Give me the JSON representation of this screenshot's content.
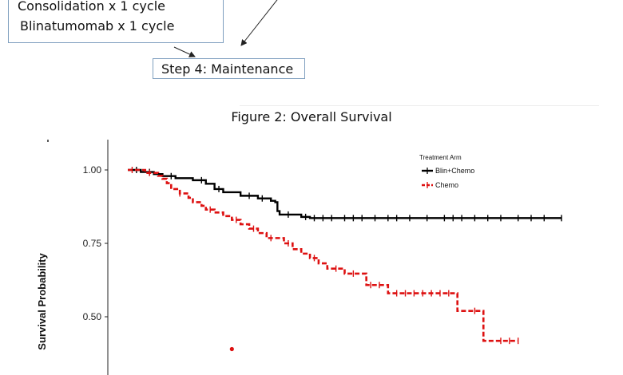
{
  "flow": {
    "box_lines": [
      "Consolidation x 1 cycle",
      "Blinatumomab x 1 cycle"
    ],
    "step4_label": "Step 4:  Maintenance"
  },
  "figure_title": "Figure 2:  Overall Survival",
  "chart_data": {
    "type": "line",
    "title": "Figure 2:  Overall Survival",
    "ylabel": "Survival Probability",
    "xlabel": "",
    "yticks": [
      0.5,
      0.75,
      1.0
    ],
    "ytick_labels": [
      "0.50",
      "0.75",
      "1.00"
    ],
    "ylim": [
      0.35,
      1.06
    ],
    "xlim": [
      0,
      1
    ],
    "grid": false,
    "legend": {
      "title": "Treatment Arm",
      "position": "top-right",
      "entries": [
        "Blin+Chemo",
        "Chemo"
      ]
    },
    "series": [
      {
        "name": "Blin+Chemo",
        "color": "#000000",
        "points": [
          [
            0.0,
            1.0
          ],
          [
            0.03,
            1.0
          ],
          [
            0.03,
            0.993
          ],
          [
            0.06,
            0.993
          ],
          [
            0.06,
            0.986
          ],
          [
            0.08,
            0.986
          ],
          [
            0.08,
            0.979
          ],
          [
            0.11,
            0.979
          ],
          [
            0.11,
            0.972
          ],
          [
            0.15,
            0.972
          ],
          [
            0.15,
            0.965
          ],
          [
            0.18,
            0.965
          ],
          [
            0.18,
            0.953
          ],
          [
            0.2,
            0.953
          ],
          [
            0.2,
            0.935
          ],
          [
            0.22,
            0.935
          ],
          [
            0.22,
            0.924
          ],
          [
            0.26,
            0.924
          ],
          [
            0.26,
            0.912
          ],
          [
            0.3,
            0.912
          ],
          [
            0.3,
            0.903
          ],
          [
            0.33,
            0.903
          ],
          [
            0.33,
            0.895
          ],
          [
            0.34,
            0.895
          ],
          [
            0.34,
            0.89
          ],
          [
            0.345,
            0.89
          ],
          [
            0.345,
            0.86
          ],
          [
            0.35,
            0.86
          ],
          [
            0.35,
            0.848
          ],
          [
            0.4,
            0.848
          ],
          [
            0.4,
            0.84
          ],
          [
            0.42,
            0.84
          ],
          [
            0.42,
            0.836
          ],
          [
            1.0,
            0.836
          ]
        ],
        "censor_x": [
          0.02,
          0.05,
          0.1,
          0.17,
          0.21,
          0.28,
          0.31,
          0.37,
          0.41,
          0.43,
          0.45,
          0.47,
          0.5,
          0.52,
          0.54,
          0.57,
          0.6,
          0.62,
          0.65,
          0.69,
          0.73,
          0.75,
          0.77,
          0.8,
          0.83,
          0.86,
          0.9,
          0.93,
          0.96,
          1.0
        ]
      },
      {
        "name": "Chemo",
        "color": "#dd1111",
        "points": [
          [
            0.0,
            1.0
          ],
          [
            0.04,
            1.0
          ],
          [
            0.04,
            0.99
          ],
          [
            0.07,
            0.99
          ],
          [
            0.07,
            0.98
          ],
          [
            0.08,
            0.98
          ],
          [
            0.08,
            0.97
          ],
          [
            0.09,
            0.97
          ],
          [
            0.09,
            0.955
          ],
          [
            0.1,
            0.955
          ],
          [
            0.1,
            0.935
          ],
          [
            0.12,
            0.935
          ],
          [
            0.12,
            0.92
          ],
          [
            0.14,
            0.92
          ],
          [
            0.14,
            0.905
          ],
          [
            0.15,
            0.905
          ],
          [
            0.15,
            0.89
          ],
          [
            0.17,
            0.89
          ],
          [
            0.17,
            0.878
          ],
          [
            0.18,
            0.878
          ],
          [
            0.18,
            0.865
          ],
          [
            0.2,
            0.865
          ],
          [
            0.2,
            0.855
          ],
          [
            0.22,
            0.855
          ],
          [
            0.22,
            0.843
          ],
          [
            0.24,
            0.843
          ],
          [
            0.24,
            0.83
          ],
          [
            0.26,
            0.83
          ],
          [
            0.26,
            0.815
          ],
          [
            0.28,
            0.815
          ],
          [
            0.28,
            0.8
          ],
          [
            0.3,
            0.8
          ],
          [
            0.3,
            0.785
          ],
          [
            0.32,
            0.785
          ],
          [
            0.32,
            0.768
          ],
          [
            0.36,
            0.768
          ],
          [
            0.36,
            0.75
          ],
          [
            0.38,
            0.75
          ],
          [
            0.38,
            0.73
          ],
          [
            0.4,
            0.73
          ],
          [
            0.4,
            0.715
          ],
          [
            0.42,
            0.715
          ],
          [
            0.42,
            0.7
          ],
          [
            0.44,
            0.7
          ],
          [
            0.44,
            0.682
          ],
          [
            0.46,
            0.682
          ],
          [
            0.46,
            0.664
          ],
          [
            0.5,
            0.664
          ],
          [
            0.5,
            0.647
          ],
          [
            0.55,
            0.647
          ],
          [
            0.55,
            0.608
          ],
          [
            0.6,
            0.608
          ],
          [
            0.6,
            0.58
          ],
          [
            0.76,
            0.58
          ],
          [
            0.76,
            0.52
          ],
          [
            0.82,
            0.52
          ],
          [
            0.82,
            0.418
          ],
          [
            0.9,
            0.418
          ]
        ],
        "censor_x": [
          0.01,
          0.05,
          0.12,
          0.19,
          0.25,
          0.29,
          0.33,
          0.37,
          0.43,
          0.48,
          0.52,
          0.56,
          0.58,
          0.62,
          0.64,
          0.66,
          0.68,
          0.7,
          0.72,
          0.74,
          0.8,
          0.86,
          0.88,
          0.9
        ]
      }
    ],
    "annotation_points": [
      {
        "x": 0.24,
        "y": 0.39,
        "color": "#dd1111"
      }
    ]
  }
}
